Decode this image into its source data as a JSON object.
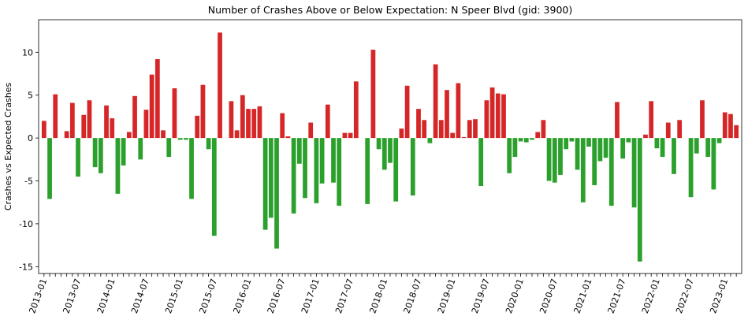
{
  "chart_data": {
    "type": "bar",
    "title": "Number of Crashes Above or Below Expectation: N Speer Blvd (gid: 3900)",
    "xlabel": "",
    "ylabel": "Crashes vs Expected Crashes",
    "ylim": [
      -15.8,
      13.8
    ],
    "yticks": [
      -15,
      -10,
      -5,
      0,
      5,
      10
    ],
    "grid": false,
    "legend": "none",
    "colors": {
      "positive": "#d62728",
      "negative": "#2ca02c"
    },
    "start": "2013-01",
    "xtick_labels": [
      "2013-01",
      "2013-07",
      "2014-01",
      "2014-07",
      "2015-01",
      "2015-07",
      "2016-01",
      "2016-07",
      "2017-01",
      "2017-07",
      "2018-01",
      "2018-07",
      "2019-01",
      "2019-07",
      "2020-01",
      "2020-07",
      "2021-01",
      "2021-07",
      "2022-01",
      "2022-07",
      "2023-01"
    ],
    "values": [
      2.0,
      -7.1,
      5.1,
      0.0,
      0.8,
      4.1,
      -4.5,
      2.7,
      4.4,
      -3.4,
      -4.1,
      3.8,
      2.3,
      -6.5,
      -3.2,
      0.7,
      4.9,
      -2.5,
      3.3,
      7.4,
      9.2,
      0.9,
      -2.2,
      5.8,
      -0.2,
      -0.2,
      -7.1,
      2.6,
      6.2,
      -1.3,
      -11.4,
      12.3,
      0.0,
      4.3,
      0.9,
      5.0,
      3.4,
      3.4,
      3.7,
      -10.7,
      -9.3,
      -12.9,
      2.9,
      0.2,
      -8.8,
      -3.0,
      -7.0,
      1.8,
      -7.6,
      -5.3,
      3.9,
      -5.2,
      -7.9,
      0.6,
      0.6,
      6.6,
      0.0,
      -7.7,
      10.3,
      -1.3,
      -3.7,
      -2.9,
      -7.4,
      1.1,
      6.1,
      -6.7,
      3.4,
      2.1,
      -0.6,
      8.6,
      2.1,
      5.6,
      0.6,
      6.4,
      0.1,
      2.1,
      2.2,
      -5.6,
      4.4,
      5.9,
      5.2,
      5.1,
      -4.1,
      -2.2,
      -0.4,
      -0.5,
      -0.2,
      0.7,
      2.1,
      -5.0,
      -5.2,
      -4.3,
      -1.3,
      -0.4,
      -3.7,
      -7.5,
      -1.0,
      -5.5,
      -2.7,
      -2.3,
      -7.9,
      4.2,
      -2.4,
      -0.5,
      -8.1,
      -14.4,
      0.4,
      4.3,
      -1.2,
      -2.2,
      1.8,
      -4.2,
      2.1,
      0.0,
      -6.9,
      -1.8,
      4.4,
      -2.2,
      -6.0,
      -0.6,
      3.0,
      2.8,
      1.5
    ]
  }
}
